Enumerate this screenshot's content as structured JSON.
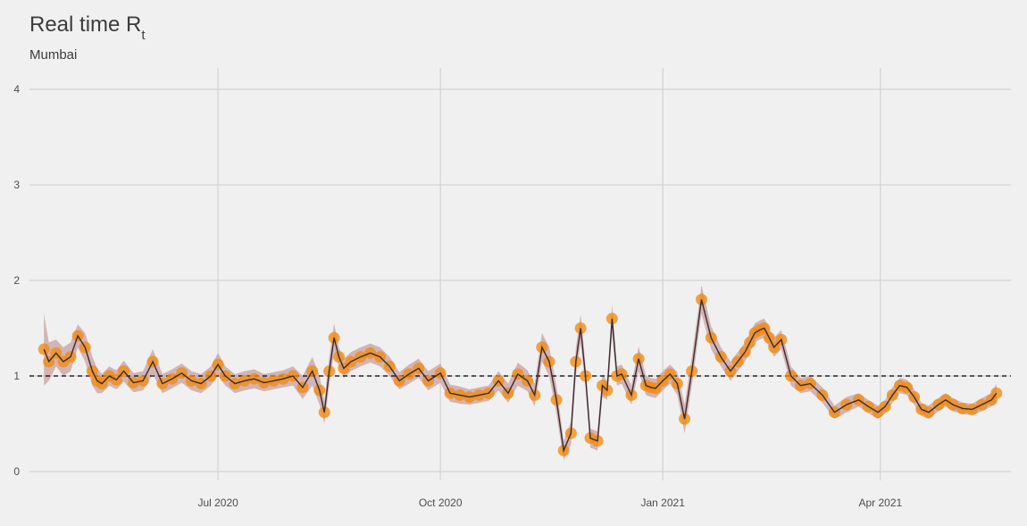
{
  "chart_data": {
    "type": "line",
    "title_main": "Real time R",
    "title_sub": "t",
    "subtitle": "Mumbai",
    "ylim": [
      0,
      4.2
    ],
    "y_ticks": [
      0,
      1,
      2,
      3,
      4
    ],
    "x_range": [
      "2020-04-14",
      "2021-05-25"
    ],
    "x_ticks": [
      {
        "date": "2020-07-01",
        "label": "Jul 2020"
      },
      {
        "date": "2020-10-01",
        "label": "Oct 2020"
      },
      {
        "date": "2021-01-01",
        "label": "Jan 2021"
      },
      {
        "date": "2021-04-01",
        "label": "Apr 2021"
      }
    ],
    "reference_line": 1,
    "colors": {
      "line": "#3a2a2f",
      "points": "#f28a10",
      "band": "#c9a0a0",
      "reference": "#000000",
      "grid": "#d2d2d2"
    },
    "series": [
      {
        "x": [
          "2020-04-20",
          "2020-04-22",
          "2020-04-25",
          "2020-04-28",
          "2020-05-01",
          "2020-05-04",
          "2020-05-07",
          "2020-05-10",
          "2020-05-12",
          "2020-05-14",
          "2020-05-17",
          "2020-05-20",
          "2020-05-23",
          "2020-05-27",
          "2020-05-31",
          "2020-06-04",
          "2020-06-08",
          "2020-06-12",
          "2020-06-16",
          "2020-06-20",
          "2020-06-24",
          "2020-06-28",
          "2020-07-01",
          "2020-07-04",
          "2020-07-08",
          "2020-07-12",
          "2020-07-16",
          "2020-07-20",
          "2020-07-24",
          "2020-07-28",
          "2020-08-01",
          "2020-08-05",
          "2020-08-09",
          "2020-08-12",
          "2020-08-14",
          "2020-08-16",
          "2020-08-18",
          "2020-08-20",
          "2020-08-22",
          "2020-08-25",
          "2020-08-29",
          "2020-09-02",
          "2020-09-06",
          "2020-09-10",
          "2020-09-14",
          "2020-09-18",
          "2020-09-22",
          "2020-09-26",
          "2020-10-01",
          "2020-10-05",
          "2020-10-09",
          "2020-10-13",
          "2020-10-17",
          "2020-10-21",
          "2020-10-25",
          "2020-10-29",
          "2020-11-02",
          "2020-11-06",
          "2020-11-09",
          "2020-11-12",
          "2020-11-15",
          "2020-11-18",
          "2020-11-21",
          "2020-11-24",
          "2020-11-26",
          "2020-11-28",
          "2020-11-30",
          "2020-12-02",
          "2020-12-05",
          "2020-12-07",
          "2020-12-09",
          "2020-12-11",
          "2020-12-13",
          "2020-12-15",
          "2020-12-19",
          "2020-12-22",
          "2020-12-25",
          "2020-12-27",
          "2020-12-29",
          "2021-01-01",
          "2021-01-04",
          "2021-01-07",
          "2021-01-10",
          "2021-01-13",
          "2021-01-17",
          "2021-01-21",
          "2021-01-25",
          "2021-01-29",
          "2021-02-01",
          "2021-02-04",
          "2021-02-06",
          "2021-02-08",
          "2021-02-10",
          "2021-02-12",
          "2021-02-14",
          "2021-02-16",
          "2021-02-19",
          "2021-02-23",
          "2021-02-27",
          "2021-03-03",
          "2021-03-08",
          "2021-03-13",
          "2021-03-18",
          "2021-03-23",
          "2021-03-27",
          "2021-03-31",
          "2021-04-03",
          "2021-04-06",
          "2021-04-09",
          "2021-04-12",
          "2021-04-15",
          "2021-04-18",
          "2021-04-21",
          "2021-04-25",
          "2021-04-28",
          "2021-05-01",
          "2021-05-05",
          "2021-05-09",
          "2021-05-13",
          "2021-05-17",
          "2021-05-19"
        ],
        "y": [
          1.28,
          1.15,
          1.24,
          1.15,
          1.2,
          1.42,
          1.3,
          1.05,
          0.95,
          0.92,
          1.0,
          0.96,
          1.05,
          0.93,
          0.95,
          1.15,
          0.92,
          0.97,
          1.03,
          0.95,
          0.92,
          1.0,
          1.12,
          1.0,
          0.92,
          0.95,
          0.97,
          0.93,
          0.95,
          0.97,
          1.0,
          0.88,
          1.05,
          0.85,
          0.62,
          1.05,
          1.4,
          1.2,
          1.08,
          1.15,
          1.2,
          1.24,
          1.2,
          1.1,
          0.95,
          1.02,
          1.08,
          0.95,
          1.03,
          0.82,
          0.8,
          0.78,
          0.8,
          0.82,
          0.95,
          0.82,
          1.02,
          0.95,
          0.8,
          1.3,
          1.15,
          0.75,
          0.22,
          0.4,
          1.15,
          1.5,
          1.0,
          0.35,
          0.32,
          0.9,
          0.85,
          1.6,
          1.0,
          1.02,
          0.8,
          1.18,
          0.9,
          0.88,
          0.87,
          0.95,
          1.02,
          0.92,
          0.55,
          1.05,
          1.8,
          1.4,
          1.2,
          1.05,
          1.15,
          1.25,
          1.35,
          1.45,
          1.48,
          1.5,
          1.4,
          1.3,
          1.38,
          1.0,
          0.9,
          0.92,
          0.8,
          0.62,
          0.7,
          0.75,
          0.68,
          0.62,
          0.68,
          0.8,
          0.9,
          0.88,
          0.78,
          0.65,
          0.62,
          0.7,
          0.75,
          0.7,
          0.66,
          0.65,
          0.7,
          0.75,
          0.82
        ],
        "lower": [
          0.9,
          0.95,
          1.1,
          1.0,
          1.05,
          1.3,
          1.15,
          0.9,
          0.82,
          0.82,
          0.9,
          0.86,
          0.94,
          0.83,
          0.85,
          1.02,
          0.82,
          0.87,
          0.93,
          0.85,
          0.82,
          0.9,
          1.0,
          0.9,
          0.82,
          0.85,
          0.87,
          0.84,
          0.86,
          0.88,
          0.9,
          0.76,
          0.9,
          0.7,
          0.5,
          0.9,
          1.25,
          1.1,
          0.98,
          1.05,
          1.1,
          1.14,
          1.1,
          1.0,
          0.86,
          0.92,
          0.98,
          0.85,
          0.93,
          0.73,
          0.71,
          0.7,
          0.72,
          0.74,
          0.85,
          0.72,
          0.9,
          0.84,
          0.68,
          1.15,
          1.0,
          0.6,
          0.12,
          0.28,
          1.0,
          1.35,
          0.88,
          0.25,
          0.22,
          0.78,
          0.75,
          1.45,
          0.9,
          0.92,
          0.7,
          1.05,
          0.8,
          0.78,
          0.77,
          0.85,
          0.92,
          0.8,
          0.4,
          0.9,
          1.65,
          1.28,
          1.1,
          0.95,
          1.05,
          1.15,
          1.25,
          1.35,
          1.38,
          1.4,
          1.3,
          1.2,
          1.28,
          0.9,
          0.82,
          0.84,
          0.72,
          0.55,
          0.62,
          0.68,
          0.61,
          0.55,
          0.61,
          0.72,
          0.82,
          0.8,
          0.7,
          0.58,
          0.55,
          0.63,
          0.68,
          0.63,
          0.6,
          0.59,
          0.63,
          0.68,
          0.72
        ],
        "upper": [
          1.65,
          1.35,
          1.38,
          1.3,
          1.35,
          1.54,
          1.45,
          1.2,
          1.08,
          1.02,
          1.1,
          1.06,
          1.16,
          1.03,
          1.05,
          1.28,
          1.02,
          1.07,
          1.13,
          1.05,
          1.02,
          1.1,
          1.24,
          1.1,
          1.02,
          1.05,
          1.07,
          1.02,
          1.04,
          1.06,
          1.1,
          1.0,
          1.2,
          1.0,
          0.74,
          1.2,
          1.55,
          1.3,
          1.18,
          1.25,
          1.3,
          1.34,
          1.3,
          1.2,
          1.04,
          1.12,
          1.18,
          1.05,
          1.13,
          0.91,
          0.89,
          0.86,
          0.88,
          0.9,
          1.05,
          0.92,
          1.14,
          1.06,
          0.92,
          1.45,
          1.3,
          0.9,
          0.32,
          0.52,
          1.3,
          1.65,
          1.12,
          0.45,
          0.42,
          1.02,
          0.95,
          1.75,
          1.1,
          1.12,
          0.9,
          1.31,
          1.0,
          0.98,
          0.97,
          1.05,
          1.12,
          1.04,
          0.7,
          1.2,
          1.95,
          1.52,
          1.3,
          1.15,
          1.25,
          1.35,
          1.45,
          1.55,
          1.58,
          1.6,
          1.5,
          1.4,
          1.48,
          1.1,
          0.98,
          1.0,
          0.88,
          0.69,
          0.78,
          0.82,
          0.75,
          0.69,
          0.75,
          0.88,
          0.98,
          0.96,
          0.86,
          0.72,
          0.69,
          0.77,
          0.82,
          0.77,
          0.72,
          0.71,
          0.77,
          0.82,
          0.92
        ]
      }
    ]
  }
}
